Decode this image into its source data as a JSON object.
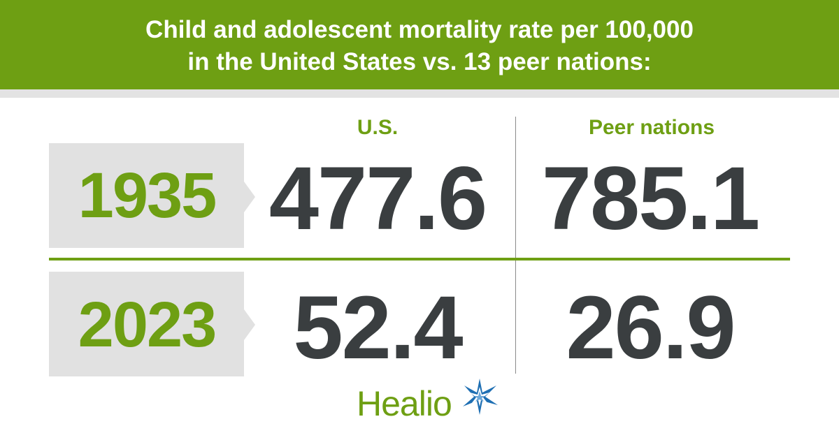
{
  "header": {
    "line1": "Child and adolescent mortality rate per 100,000",
    "line2": "in the United States vs. 13 peer nations:"
  },
  "chart_data": {
    "type": "table",
    "title": "Child and adolescent mortality rate per 100,000 in the United States vs. 13 peer nations:",
    "columns": [
      "U.S.",
      "Peer nations"
    ],
    "rows": [
      {
        "year": "1935",
        "values": [
          "477.6",
          "785.1"
        ]
      },
      {
        "year": "2023",
        "values": [
          "52.4",
          "26.9"
        ]
      }
    ]
  },
  "logo": {
    "text": "Healio",
    "icon": "star-burst-icon"
  },
  "colors": {
    "accent_green": "#6e9f13",
    "value_dark": "#3a3e40",
    "year_box_gray": "#e1e1e1",
    "logo_blue": "#1e6fb3"
  }
}
